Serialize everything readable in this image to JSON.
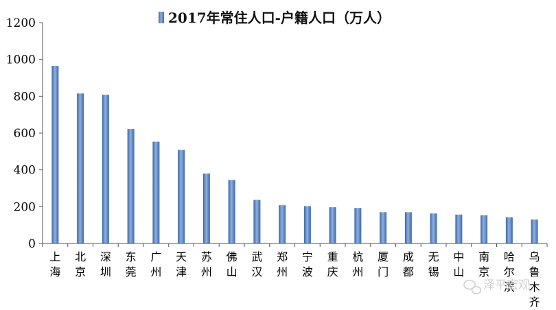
{
  "chart_data": {
    "type": "bar",
    "series": [
      {
        "name": "2017年常住人口-户籍人口（万人）",
        "color": "#4f7ec0",
        "values": [
          965,
          815,
          808,
          622,
          553,
          508,
          380,
          345,
          237,
          208,
          203,
          197,
          193,
          170,
          170,
          163,
          157,
          153,
          142,
          130
        ]
      }
    ],
    "categories": [
      "上海",
      "北京",
      "深圳",
      "东莞",
      "广州",
      "天津",
      "苏州",
      "佛山",
      "武汉",
      "郑州",
      "宁波",
      "重庆",
      "杭州",
      "厦门",
      "成都",
      "无锡",
      "中山",
      "南京",
      "哈尔滨",
      "乌鲁木齐"
    ],
    "ylim": [
      0,
      1200
    ],
    "yticks": [
      0,
      200,
      400,
      600,
      800,
      1000,
      1200
    ],
    "legend": "top-center",
    "grid": false
  },
  "watermark": {
    "icon": "wechat-icon",
    "text": "泽平宏观"
  }
}
